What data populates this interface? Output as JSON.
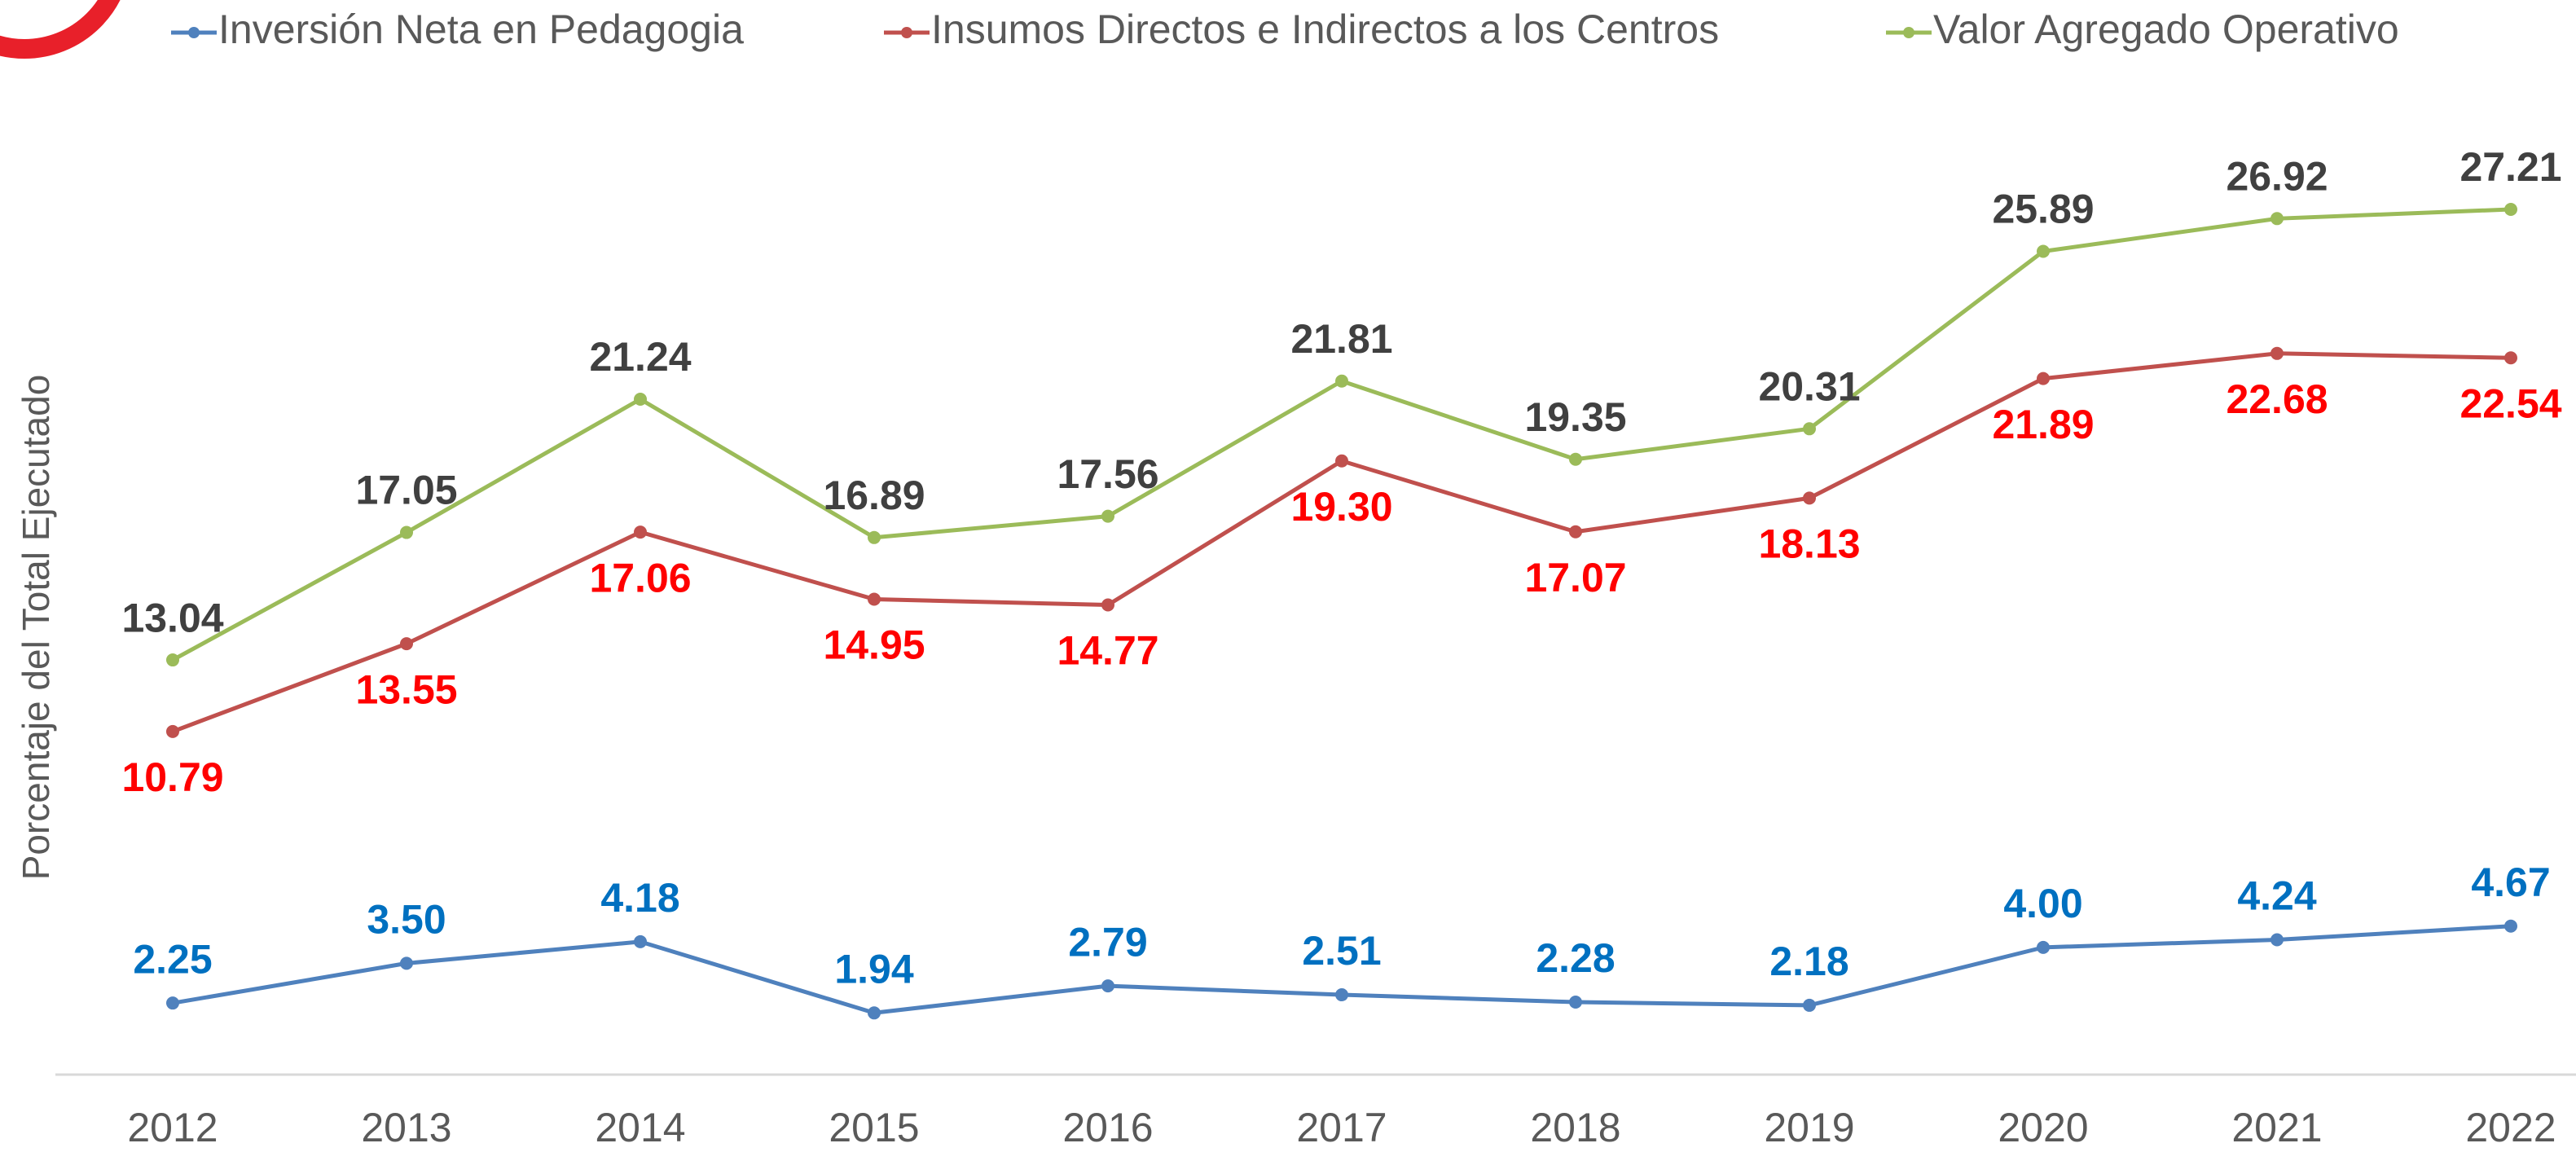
{
  "chart_data": {
    "type": "line",
    "y_label": "Porcentaje del Total Ejecutado",
    "categories": [
      "2012",
      "2013",
      "2014",
      "2015",
      "2016",
      "2017",
      "2018",
      "2019",
      "2020",
      "2021",
      "2022"
    ],
    "series": [
      {
        "name": "Inversión Neta en Pedagogia",
        "color": "#4f81bd",
        "label_color": "#0070c0",
        "values": [
          2.25,
          3.5,
          4.18,
          1.94,
          2.79,
          2.51,
          2.28,
          2.18,
          4.0,
          4.24,
          4.67
        ],
        "value_labels": [
          "2.25",
          "3.50",
          "4.18",
          "1.94",
          "2.79",
          "2.51",
          "2.28",
          "2.18",
          "4.00",
          "4.24",
          "4.67"
        ]
      },
      {
        "name": "Insumos Directos e Indirectos a los Centros",
        "color": "#c0504d",
        "label_color": "#ff0000",
        "values": [
          10.79,
          13.55,
          17.06,
          14.95,
          14.77,
          19.3,
          17.07,
          18.13,
          21.89,
          22.68,
          22.54
        ],
        "value_labels": [
          "10.79",
          "13.55",
          "17.06",
          "14.95",
          "14.77",
          "19.30",
          "17.07",
          "18.13",
          "21.89",
          "22.68",
          "22.54"
        ]
      },
      {
        "name": "Valor Agregado Operativo",
        "color": "#9bbb59",
        "label_color": "#404040",
        "values": [
          13.04,
          17.05,
          21.24,
          16.89,
          17.56,
          21.81,
          19.35,
          20.31,
          25.89,
          26.92,
          27.21
        ],
        "value_labels": [
          "13.04",
          "17.05",
          "21.24",
          "16.89",
          "17.56",
          "21.81",
          "19.35",
          "20.31",
          "25.89",
          "26.92",
          "27.21"
        ]
      }
    ]
  }
}
